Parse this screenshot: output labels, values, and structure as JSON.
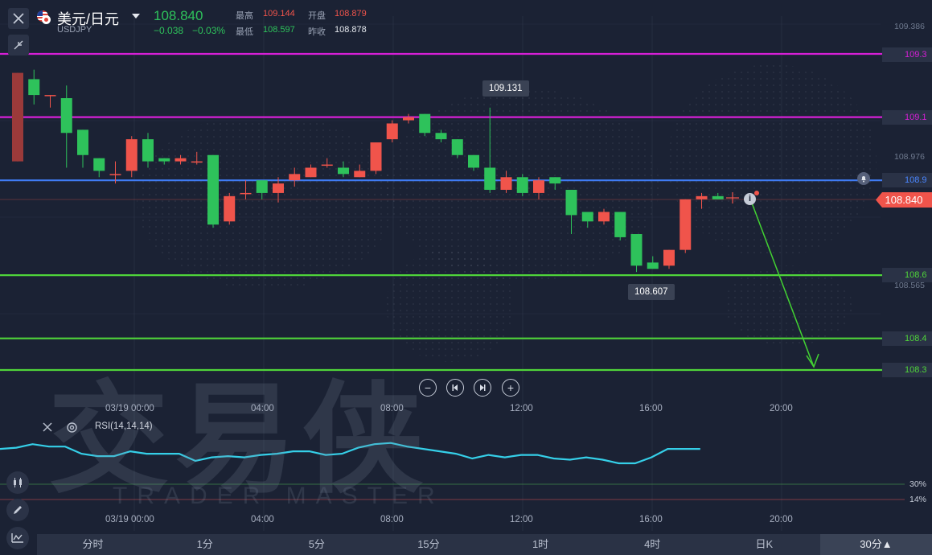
{
  "header": {
    "symbol_name": "美元/日元",
    "symbol_code": "USDJPY",
    "last_price": "108.840",
    "change": "−0.038",
    "change_pct": "−0.03%",
    "high_label": "最高",
    "high_value": "109.144",
    "open_label": "开盘",
    "open_value": "108.879",
    "low_label": "最低",
    "low_value": "108.597",
    "prev_close_label": "昨收",
    "prev_close_value": "108.878"
  },
  "levels": [
    {
      "label": "109.3",
      "price": 109.3,
      "color": "#d61fd6"
    },
    {
      "label": "109.1",
      "price": 109.1,
      "color": "#d61fd6"
    },
    {
      "label": "108.9",
      "price": 108.9,
      "color": "#3f7cf5"
    },
    {
      "label": "108.6",
      "price": 108.6,
      "color": "#4fd43a"
    },
    {
      "label": "108.4",
      "price": 108.4,
      "color": "#4fd43a"
    },
    {
      "label": "108.3",
      "price": 108.3,
      "color": "#4fd43a"
    }
  ],
  "axis_prices": {
    "p1": "109.386",
    "p2": "108.976",
    "p3": "108.565"
  },
  "current_price_tag": "108.840",
  "tooltips": {
    "high": "109.131",
    "low": "108.607"
  },
  "time_axis": [
    "03/19 00:00",
    "04:00",
    "08:00",
    "12:00",
    "16:00",
    "20:00"
  ],
  "rsi": {
    "label": "RSI(14,14,14)",
    "level_high": "30%",
    "level_low": "14%"
  },
  "tabs": [
    "分时",
    "1分",
    "5分",
    "15分",
    "1时",
    "4时",
    "日K",
    "30分▲"
  ],
  "active_tab": "30分▲",
  "watermark": {
    "cn": "交易侠",
    "en": "TRADER MASTER"
  },
  "colors": {
    "up": "#f0544b",
    "down": "#2ec25b",
    "background": "#1b2234",
    "rsi_line": "#35cfe8"
  },
  "icons": [
    "close-icon",
    "collapse-icon",
    "flag-icon",
    "caret-down-icon",
    "bell-icon",
    "info-icon",
    "settings-icon",
    "candles-icon",
    "pencil-icon",
    "indicator-icon",
    "zoom-out-icon",
    "zoom-in-icon",
    "step-back-icon",
    "step-forward-icon"
  ],
  "chart_data": {
    "type": "candlestick",
    "ylim": [
      108.26,
      109.42
    ],
    "candles": [
      {
        "o": 108.96,
        "h": 109.24,
        "c": 109.24,
        "l": 108.96
      },
      {
        "o": 109.22,
        "h": 109.25,
        "c": 109.17,
        "l": 109.14
      },
      {
        "o": 109.17,
        "h": 109.17,
        "c": 109.17,
        "l": 109.13
      },
      {
        "o": 109.16,
        "h": 109.2,
        "c": 109.05,
        "l": 108.94
      },
      {
        "o": 109.06,
        "h": 109.06,
        "c": 108.98,
        "l": 108.94
      },
      {
        "o": 108.97,
        "h": 108.97,
        "c": 108.93,
        "l": 108.91
      },
      {
        "o": 108.92,
        "h": 108.96,
        "c": 108.92,
        "l": 108.89
      },
      {
        "o": 108.93,
        "h": 109.04,
        "c": 109.03,
        "l": 108.91
      },
      {
        "o": 109.03,
        "h": 109.05,
        "c": 108.96,
        "l": 108.94
      },
      {
        "o": 108.97,
        "h": 108.97,
        "c": 108.96,
        "l": 108.95
      },
      {
        "o": 108.96,
        "h": 108.98,
        "c": 108.97,
        "l": 108.95
      },
      {
        "o": 108.96,
        "h": 108.99,
        "c": 108.96,
        "l": 108.95
      },
      {
        "o": 108.98,
        "h": 108.98,
        "c": 108.76,
        "l": 108.75
      },
      {
        "o": 108.77,
        "h": 108.86,
        "c": 108.85,
        "l": 108.76
      },
      {
        "o": 108.86,
        "h": 108.9,
        "c": 108.86,
        "l": 108.84
      },
      {
        "o": 108.9,
        "h": 108.9,
        "c": 108.86,
        "l": 108.84
      },
      {
        "o": 108.86,
        "h": 108.91,
        "c": 108.89,
        "l": 108.83
      },
      {
        "o": 108.9,
        "h": 108.94,
        "c": 108.92,
        "l": 108.88
      },
      {
        "o": 108.91,
        "h": 108.95,
        "c": 108.94,
        "l": 108.91
      },
      {
        "o": 108.95,
        "h": 108.97,
        "c": 108.95,
        "l": 108.94
      },
      {
        "o": 108.94,
        "h": 108.96,
        "c": 108.92,
        "l": 108.91
      },
      {
        "o": 108.91,
        "h": 108.95,
        "c": 108.93,
        "l": 108.91
      },
      {
        "o": 108.93,
        "h": 109.02,
        "c": 109.02,
        "l": 108.92
      },
      {
        "o": 109.03,
        "h": 109.09,
        "c": 109.08,
        "l": 109.02
      },
      {
        "o": 109.09,
        "h": 109.11,
        "c": 109.1,
        "l": 109.08
      },
      {
        "o": 109.11,
        "h": 109.11,
        "c": 109.05,
        "l": 109.04
      },
      {
        "o": 109.05,
        "h": 109.06,
        "c": 109.03,
        "l": 109.02
      },
      {
        "o": 109.03,
        "h": 109.03,
        "c": 108.98,
        "l": 108.97
      },
      {
        "o": 108.98,
        "h": 108.98,
        "c": 108.94,
        "l": 108.93
      },
      {
        "o": 108.94,
        "h": 109.13,
        "c": 108.87,
        "l": 108.86
      },
      {
        "o": 108.87,
        "h": 108.93,
        "c": 108.91,
        "l": 108.86
      },
      {
        "o": 108.91,
        "h": 108.92,
        "c": 108.86,
        "l": 108.85
      },
      {
        "o": 108.86,
        "h": 108.91,
        "c": 108.9,
        "l": 108.84
      },
      {
        "o": 108.91,
        "h": 108.91,
        "c": 108.89,
        "l": 108.87
      },
      {
        "o": 108.87,
        "h": 108.87,
        "c": 108.79,
        "l": 108.73
      },
      {
        "o": 108.8,
        "h": 108.8,
        "c": 108.77,
        "l": 108.75
      },
      {
        "o": 108.77,
        "h": 108.81,
        "c": 108.8,
        "l": 108.76
      },
      {
        "o": 108.8,
        "h": 108.8,
        "c": 108.72,
        "l": 108.71
      },
      {
        "o": 108.73,
        "h": 108.73,
        "c": 108.63,
        "l": 108.61
      },
      {
        "o": 108.64,
        "h": 108.66,
        "c": 108.62,
        "l": 108.62
      },
      {
        "o": 108.63,
        "h": 108.68,
        "c": 108.68,
        "l": 108.62
      },
      {
        "o": 108.68,
        "h": 108.84,
        "c": 108.84,
        "l": 108.67
      },
      {
        "o": 108.84,
        "h": 108.86,
        "c": 108.85,
        "l": 108.81
      },
      {
        "o": 108.85,
        "h": 108.86,
        "c": 108.84,
        "l": 108.84
      }
    ],
    "rsi_values": [
      55,
      56,
      59,
      57,
      57,
      51,
      49,
      49,
      53,
      51,
      51,
      51,
      45,
      48,
      49,
      48,
      50,
      51,
      53,
      53,
      50,
      51,
      56,
      59,
      60,
      57,
      55,
      53,
      51,
      47,
      50,
      48,
      50,
      50,
      47,
      46,
      48,
      46,
      43,
      43,
      48,
      55,
      55,
      55
    ],
    "rsi_levels": [
      30,
      14
    ],
    "arrow": {
      "from_index": 45,
      "from_price": 108.84,
      "to_index": 49,
      "to_price": 108.31
    }
  }
}
